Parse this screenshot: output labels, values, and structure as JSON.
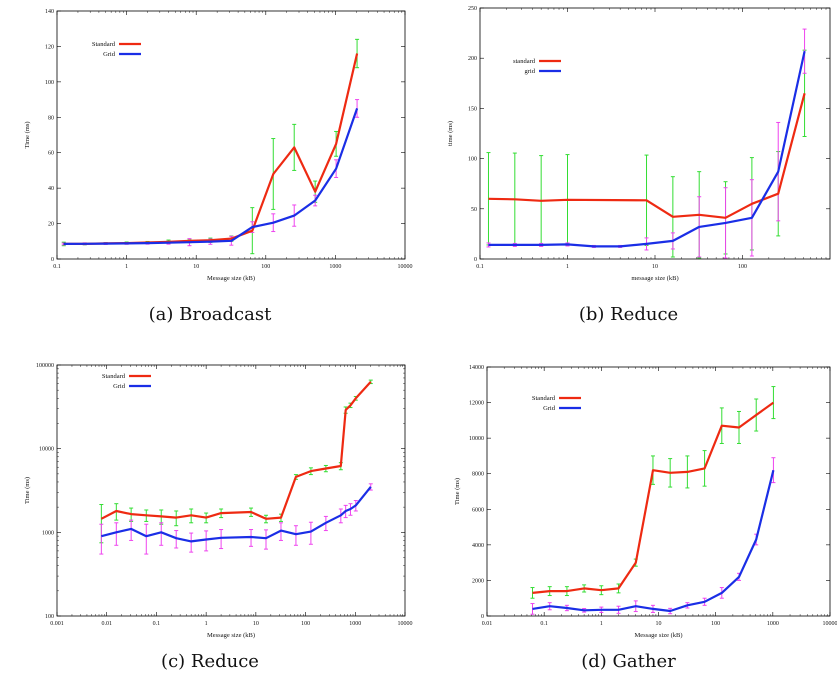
{
  "colors": {
    "series_a": "#ee2a12",
    "series_b": "#1a2ee6",
    "err_a": "#33dd33",
    "err_b": "#ee44ee"
  },
  "panels": [
    {
      "caption": "(a)  Broadcast",
      "chart_data": {
        "type": "line",
        "xlabel": "Message size (kB)",
        "ylabel": "Time (ms)",
        "xscale": "log",
        "xlim": [
          0.1,
          10000
        ],
        "ylim": [
          0,
          140
        ],
        "xticks": [
          0.1,
          1,
          10,
          100,
          1000,
          10000
        ],
        "xtick_labels": [
          "0.1",
          "1",
          "10",
          "100",
          "1000",
          "10000"
        ],
        "yticks": [
          0,
          20,
          40,
          60,
          80,
          100,
          120,
          140
        ],
        "ytick_labels": [
          "0",
          "20",
          "40",
          "60",
          "80",
          "100",
          "120",
          "140"
        ],
        "legend": "top-left",
        "series": [
          {
            "name": "Standard",
            "color": "series_a",
            "err_color": "err_a",
            "x": [
              0.125,
              0.25,
              0.5,
              1,
              2,
              4,
              8,
              16,
              32,
              64,
              128,
              256,
              512,
              1024,
              2048
            ],
            "y": [
              8.5,
              8.5,
              8.8,
              9,
              9.3,
              9.7,
              10.2,
              10.6,
              11.5,
              16,
              48,
              63,
              38,
              65,
              116
            ],
            "err": [
              1,
              0.5,
              0.5,
              0.6,
              0.6,
              1,
              1,
              1.2,
              1.5,
              13,
              20,
              13,
              6,
              7,
              8
            ]
          },
          {
            "name": "Grid",
            "color": "series_b",
            "err_color": "err_b",
            "x": [
              0.125,
              0.25,
              0.5,
              1,
              2,
              4,
              8,
              16,
              32,
              64,
              128,
              256,
              512,
              1024,
              2048
            ],
            "y": [
              8.5,
              8.6,
              8.7,
              8.8,
              9,
              9.2,
              9.5,
              9.8,
              10.3,
              18,
              20.5,
              24.5,
              33,
              51,
              85
            ],
            "err": [
              0.5,
              0.5,
              0.5,
              0.5,
              0.6,
              0.8,
              2,
              1.5,
              2.5,
              3,
              5,
              6,
              3,
              5,
              5
            ]
          }
        ]
      }
    },
    {
      "caption": "(b)  Reduce",
      "chart_data": {
        "type": "line",
        "xlabel": "message size (kB)",
        "ylabel": "time (ms)",
        "xscale": "log",
        "xlim": [
          0.1,
          1000
        ],
        "ylim": [
          0,
          250
        ],
        "xticks": [
          0.1,
          1,
          10,
          100
        ],
        "xtick_labels": [
          "0.1",
          "1",
          "10",
          "100"
        ],
        "yticks": [
          0,
          50,
          100,
          150,
          200,
          250
        ],
        "ytick_labels": [
          "0",
          "50",
          "100",
          "150",
          "200",
          "250"
        ],
        "legend": "top-left",
        "series": [
          {
            "name": "standard",
            "color": "series_a",
            "err_color": "err_a",
            "x": [
              0.125,
              0.25,
              0.5,
              1,
              8,
              16,
              32,
              64,
              128,
              256,
              512
            ],
            "y": [
              60,
              59.5,
              58,
              59,
              58.5,
              42,
              44,
              41,
              55,
              65,
              165
            ],
            "err": [
              46,
              46,
              45,
              45,
              45,
              40,
              43,
              36,
              46,
              42,
              43
            ]
          },
          {
            "name": "grid",
            "color": "series_b",
            "err_color": "err_b",
            "x": [
              0.125,
              0.25,
              0.5,
              1,
              2,
              4,
              8,
              16,
              32,
              64,
              128,
              256,
              512
            ],
            "y": [
              14,
              14,
              14,
              14.5,
              12.5,
              12.5,
              15,
              18,
              32,
              36,
              41,
              87,
              207
            ],
            "err": [
              2,
              1.5,
              1.5,
              1.5,
              1,
              1,
              6,
              8,
              30,
              35,
              38,
              49,
              22
            ]
          }
        ]
      }
    },
    {
      "caption": "(c)  Reduce",
      "chart_data": {
        "type": "line",
        "xlabel": "Message size (kB)",
        "ylabel": "Time (ms)",
        "xscale": "log",
        "yscale": "log",
        "xlim": [
          0.001,
          10000
        ],
        "ylim": [
          100,
          100000
        ],
        "xticks": [
          0.001,
          0.01,
          0.1,
          1,
          10,
          100,
          1000,
          10000
        ],
        "xtick_labels": [
          "0.001",
          "0.01",
          "0.1",
          "1",
          "10",
          "100",
          "1000",
          "10000"
        ],
        "yticks": [
          100,
          1000,
          10000,
          100000
        ],
        "ytick_labels": [
          "100",
          "1000",
          "10000",
          "100000"
        ],
        "legend": "top-left",
        "series": [
          {
            "name": "Standard",
            "color": "series_a",
            "err_color": "err_a",
            "x": [
              0.0078,
              0.0156,
              0.031,
              0.0625,
              0.125,
              0.25,
              0.5,
              1,
              2,
              8,
              16,
              32,
              64,
              128,
              256,
              512,
              640,
              800,
              1024,
              2048
            ],
            "y": [
              1450,
              1800,
              1650,
              1600,
              1550,
              1500,
              1600,
              1500,
              1700,
              1750,
              1450,
              1500,
              4600,
              5400,
              5800,
              6200,
              29000,
              33000,
              40000,
              63000
            ],
            "err": [
              700,
              400,
              300,
              250,
              300,
              300,
              300,
              200,
              200,
              200,
              150,
              150,
              300,
              500,
              500,
              600,
              2500,
              2000,
              2000,
              3000
            ]
          },
          {
            "name": "Grid",
            "color": "series_b",
            "err_color": "err_b",
            "x": [
              0.0078,
              0.0156,
              0.031,
              0.0625,
              0.125,
              0.25,
              0.5,
              1,
              2,
              8,
              16,
              32,
              64,
              128,
              256,
              512,
              640,
              800,
              1024,
              2048
            ],
            "y": [
              900,
              1000,
              1100,
              900,
              1000,
              850,
              780,
              820,
              860,
              880,
              850,
              1050,
              950,
              1020,
              1300,
              1600,
              1800,
              1900,
              2100,
              3500
            ],
            "err": [
              350,
              300,
              300,
              350,
              300,
              200,
              200,
              220,
              220,
              200,
              220,
              250,
              250,
              300,
              250,
              300,
              300,
              300,
              300,
              300
            ]
          }
        ]
      }
    },
    {
      "caption": "(d)  Gather",
      "chart_data": {
        "type": "line",
        "xlabel": "Message size (kB)",
        "ylabel": "Time (ms)",
        "xscale": "log",
        "xlim": [
          0.01,
          10000
        ],
        "ylim": [
          0,
          14000
        ],
        "xticks": [
          0.01,
          0.1,
          1,
          10,
          100,
          1000,
          10000
        ],
        "xtick_labels": [
          "0.01",
          "0.1",
          "1",
          "10",
          "100",
          "1000",
          "10000"
        ],
        "yticks": [
          0,
          2000,
          4000,
          6000,
          8000,
          10000,
          12000,
          14000
        ],
        "ytick_labels": [
          "0",
          "2000",
          "4000",
          "6000",
          "8000",
          "10000",
          "12000",
          "14000"
        ],
        "legend": "top-left",
        "series": [
          {
            "name": "Standard",
            "color": "series_a",
            "err_color": "err_a",
            "x": [
              0.0625,
              0.125,
              0.25,
              0.5,
              1,
              2,
              4,
              8,
              16,
              32,
              64,
              128,
              256,
              512,
              1024
            ],
            "y": [
              1300,
              1400,
              1400,
              1550,
              1450,
              1550,
              3000,
              8200,
              8050,
              8100,
              8300,
              10700,
              10600,
              11300,
              12000
            ],
            "err": [
              300,
              250,
              250,
              200,
              250,
              250,
              200,
              800,
              800,
              900,
              1000,
              1000,
              900,
              900,
              900
            ]
          },
          {
            "name": "Grid",
            "color": "series_b",
            "err_color": "err_b",
            "x": [
              0.0625,
              0.125,
              0.25,
              0.5,
              1,
              2,
              4,
              8,
              16,
              32,
              64,
              128,
              256,
              512,
              1024
            ],
            "y": [
              400,
              550,
              450,
              320,
              350,
              350,
              550,
              400,
              280,
              600,
              800,
              1300,
              2200,
              4300,
              8200
            ],
            "err": [
              300,
              200,
              150,
              100,
              150,
              200,
              300,
              200,
              150,
              150,
              200,
              300,
              200,
              300,
              700
            ]
          }
        ]
      }
    }
  ]
}
